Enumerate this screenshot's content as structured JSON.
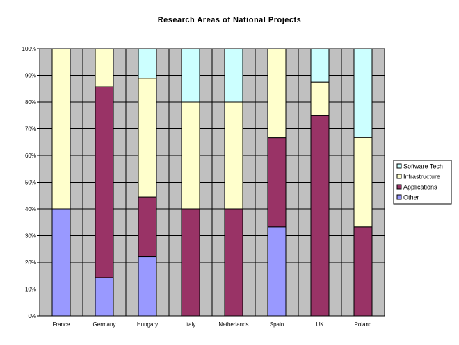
{
  "chart_data": {
    "type": "bar",
    "stacked": true,
    "percent": true,
    "title": "Research Areas of National Projects",
    "categories": [
      "France",
      "Germany",
      "Hungary",
      "Italy",
      "Netherlands",
      "Spain",
      "UK",
      "Poland"
    ],
    "series": [
      {
        "name": "Other",
        "color": "#9999ff",
        "values": [
          40,
          14.3,
          22.2,
          0,
          0,
          33.3,
          0,
          0
        ]
      },
      {
        "name": "Applications",
        "color": "#993366",
        "values": [
          0,
          71.4,
          22.2,
          40,
          40,
          33.3,
          75,
          33.3
        ]
      },
      {
        "name": "Infrastructure",
        "color": "#ffffcc",
        "values": [
          60,
          14.3,
          44.5,
          40,
          40,
          33.4,
          12.5,
          33.4
        ]
      },
      {
        "name": "Software Tech",
        "color": "#ccffff",
        "values": [
          0,
          0,
          11.1,
          20,
          20,
          0,
          12.5,
          33.3
        ]
      }
    ],
    "legend_order": [
      "Software Tech",
      "Infrastructure",
      "Applications",
      "Other"
    ],
    "yticks": [
      "0%",
      "10%",
      "20%",
      "30%",
      "40%",
      "50%",
      "60%",
      "70%",
      "80%",
      "90%",
      "100%"
    ],
    "ylim": [
      0,
      100
    ],
    "grid": true,
    "legend_position": "right",
    "plot_background": "#c0c0c0"
  }
}
